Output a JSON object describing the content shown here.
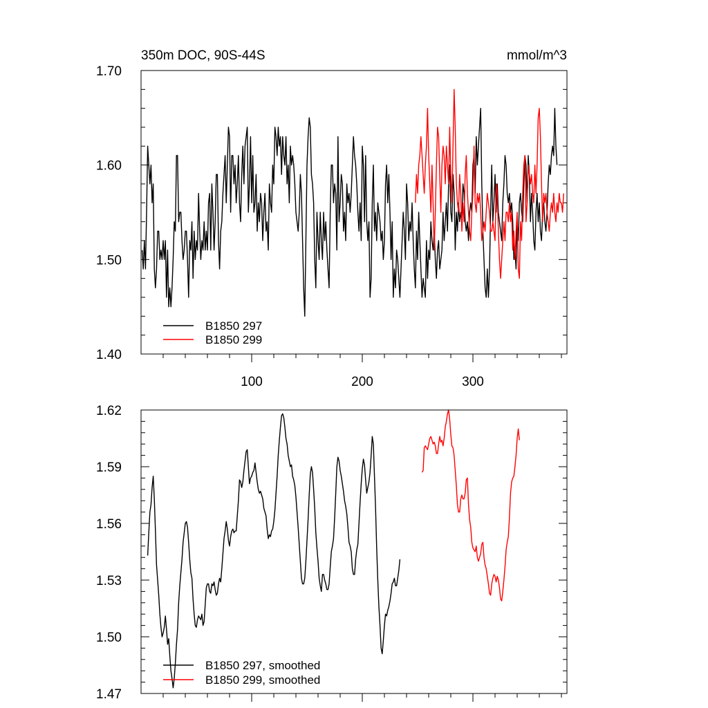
{
  "chart_data": [
    {
      "type": "line",
      "title_left": "350m DOC, 90S-44S",
      "title_right": "mmol/m^3",
      "xlabel": "",
      "ylabel": "",
      "xlim": [
        0,
        385
      ],
      "ylim": [
        1.4,
        1.7
      ],
      "xticks": [
        100,
        200,
        300
      ],
      "xtick_labels": [
        "100",
        "200",
        "300"
      ],
      "yticks": [
        1.4,
        1.5,
        1.6,
        1.7
      ],
      "ytick_labels": [
        "1.40",
        "1.50",
        "1.60",
        "1.70"
      ],
      "legend_position": "bottom-left",
      "series": [
        {
          "name": "B1850 297",
          "color": "#000000",
          "x0": 1,
          "values": [
            1.51,
            1.49,
            1.52,
            1.49,
            1.55,
            1.62,
            1.6,
            1.58,
            1.6,
            1.56,
            1.58,
            1.49,
            1.47,
            1.49,
            1.53,
            1.53,
            1.5,
            1.51,
            1.5,
            1.52,
            1.5,
            1.52,
            1.46,
            1.51,
            1.45,
            1.47,
            1.45,
            1.47,
            1.5,
            1.54,
            1.53,
            1.61,
            1.61,
            1.54,
            1.55,
            1.55,
            1.52,
            1.5,
            1.51,
            1.53,
            1.53,
            1.5,
            1.46,
            1.52,
            1.51,
            1.54,
            1.48,
            1.53,
            1.5,
            1.52,
            1.51,
            1.57,
            1.53,
            1.5,
            1.52,
            1.51,
            1.54,
            1.51,
            1.53,
            1.51,
            1.56,
            1.57,
            1.51,
            1.58,
            1.55,
            1.51,
            1.54,
            1.59,
            1.59,
            1.52,
            1.49,
            1.53,
            1.54,
            1.57,
            1.59,
            1.61,
            1.56,
            1.6,
            1.64,
            1.63,
            1.55,
            1.61,
            1.61,
            1.58,
            1.6,
            1.56,
            1.58,
            1.61,
            1.56,
            1.54,
            1.59,
            1.62,
            1.58,
            1.62,
            1.63,
            1.64,
            1.55,
            1.58,
            1.63,
            1.56,
            1.61,
            1.55,
            1.56,
            1.59,
            1.53,
            1.56,
            1.54,
            1.57,
            1.56,
            1.52,
            1.55,
            1.57,
            1.53,
            1.54,
            1.51,
            1.58,
            1.56,
            1.55,
            1.6,
            1.58,
            1.64,
            1.63,
            1.61,
            1.64,
            1.62,
            1.63,
            1.59,
            1.63,
            1.61,
            1.6,
            1.63,
            1.58,
            1.6,
            1.56,
            1.62,
            1.6,
            1.61,
            1.6,
            1.58,
            1.55,
            1.54,
            1.53,
            1.55,
            1.59,
            1.57,
            1.52,
            1.47,
            1.44,
            1.52,
            1.6,
            1.63,
            1.65,
            1.64,
            1.59,
            1.58,
            1.56,
            1.5,
            1.47,
            1.55,
            1.52,
            1.5,
            1.55,
            1.52,
            1.5,
            1.55,
            1.52,
            1.54,
            1.51,
            1.49,
            1.47,
            1.55,
            1.6,
            1.6,
            1.56,
            1.58,
            1.57,
            1.51,
            1.63,
            1.54,
            1.56,
            1.59,
            1.58,
            1.53,
            1.55,
            1.52,
            1.58,
            1.56,
            1.57,
            1.55,
            1.57,
            1.6,
            1.63,
            1.61,
            1.6,
            1.58,
            1.55,
            1.53,
            1.56,
            1.52,
            1.62,
            1.6,
            1.54,
            1.61,
            1.54,
            1.52,
            1.54,
            1.46,
            1.48,
            1.56,
            1.6,
            1.53,
            1.55,
            1.52,
            1.56,
            1.55,
            1.54,
            1.52,
            1.53,
            1.5,
            1.52,
            1.58,
            1.6,
            1.56,
            1.59,
            1.55,
            1.5,
            1.54,
            1.46,
            1.49,
            1.47,
            1.51,
            1.5,
            1.48,
            1.46,
            1.49,
            1.52,
            1.55,
            1.53,
            1.5,
            1.58,
            1.56,
            1.52,
            1.54,
            1.53,
            1.56,
            1.52,
            1.49,
            1.47,
            1.53,
            1.5,
            1.55,
            1.52,
            1.49,
            1.46,
            1.48,
            1.47,
            1.46,
            1.52,
            1.48,
            1.51,
            1.5,
            1.54,
            1.52,
            1.51,
            1.53,
            1.5,
            1.48,
            1.51,
            1.52,
            1.49,
            1.5,
            1.51,
            1.55,
            1.52,
            1.54,
            1.56,
            1.53,
            1.58,
            1.6,
            1.55,
            1.54,
            1.59,
            1.57,
            1.51,
            1.55,
            1.53,
            1.56,
            1.54,
            1.55,
            1.54,
            1.58,
            1.57,
            1.54,
            1.53,
            1.54,
            1.52,
            1.55,
            1.56,
            1.55,
            1.6,
            1.61,
            1.57,
            1.63,
            1.6,
            1.62,
            1.64,
            1.66,
            1.58,
            1.53,
            1.5,
            1.47,
            1.46,
            1.49,
            1.46,
            1.49,
            1.55,
            1.6,
            1.54,
            1.56,
            1.59,
            1.55,
            1.58,
            1.55,
            1.54,
            1.53,
            1.52,
            1.56,
            1.58,
            1.61,
            1.6,
            1.57,
            1.56,
            1.57,
            1.55,
            1.56,
            1.54,
            1.5,
            1.51,
            1.49,
            1.54,
            1.52,
            1.56,
            1.57,
            1.55,
            1.54,
            1.58,
            1.61,
            1.6,
            1.56,
            1.61,
            1.59,
            1.54,
            1.57,
            1.55,
            1.52,
            1.51,
            1.55,
            1.57,
            1.54,
            1.56,
            1.53,
            1.52,
            1.55,
            1.56,
            1.54,
            1.53,
            1.55,
            1.58,
            1.6,
            1.59,
            1.61,
            1.62,
            1.61,
            1.66,
            1.62,
            1.6
          ]
        },
        {
          "name": "B1850 299",
          "color": "#ff0000",
          "x0": 248,
          "values": [
            1.56,
            1.59,
            1.57,
            1.6,
            1.61,
            1.63,
            1.61,
            1.59,
            1.57,
            1.6,
            1.62,
            1.66,
            1.61,
            1.58,
            1.55,
            1.6,
            1.56,
            1.51,
            1.55,
            1.6,
            1.64,
            1.63,
            1.59,
            1.55,
            1.6,
            1.62,
            1.61,
            1.58,
            1.62,
            1.6,
            1.58,
            1.64,
            1.59,
            1.56,
            1.62,
            1.68,
            1.64,
            1.58,
            1.56,
            1.55,
            1.59,
            1.57,
            1.53,
            1.56,
            1.54,
            1.59,
            1.61,
            1.57,
            1.55,
            1.53,
            1.52,
            1.55,
            1.57,
            1.62,
            1.56,
            1.55,
            1.57,
            1.56,
            1.57,
            1.55,
            1.52,
            1.53,
            1.54,
            1.53,
            1.55,
            1.57,
            1.56,
            1.55,
            1.53,
            1.53,
            1.54,
            1.53,
            1.52,
            1.58,
            1.57,
            1.53,
            1.5,
            1.48,
            1.5,
            1.52,
            1.54,
            1.52,
            1.55,
            1.55,
            1.54,
            1.56,
            1.54,
            1.55,
            1.51,
            1.53,
            1.5,
            1.53,
            1.55,
            1.49,
            1.48,
            1.54,
            1.52,
            1.57,
            1.6,
            1.61,
            1.54,
            1.56,
            1.6,
            1.59,
            1.58,
            1.59,
            1.57,
            1.56,
            1.6,
            1.57,
            1.6,
            1.65,
            1.66,
            1.63,
            1.58,
            1.54,
            1.57,
            1.56,
            1.57,
            1.55,
            1.54,
            1.53,
            1.55,
            1.56,
            1.55,
            1.57,
            1.55,
            1.54,
            1.56,
            1.55,
            1.57,
            1.56,
            1.56,
            1.55,
            1.57
          ]
        }
      ]
    },
    {
      "type": "line",
      "title_left": "",
      "title_right": "",
      "xlabel": "",
      "ylabel": "",
      "xlim": [
        0,
        385
      ],
      "ylim": [
        1.47,
        1.62
      ],
      "xticks": [
        100,
        200,
        300
      ],
      "xtick_labels": [],
      "yticks": [
        1.47,
        1.5,
        1.53,
        1.56,
        1.59,
        1.62
      ],
      "ytick_labels": [
        "1.47",
        "1.50",
        "1.53",
        "1.56",
        "1.59",
        "1.62"
      ],
      "legend_position": "bottom-left",
      "series": [
        {
          "name": "B1850 297, smoothed",
          "color": "#000000",
          "x0": 6,
          "values": [
            1.543,
            1.555,
            1.566,
            1.57,
            1.579,
            1.585,
            1.573,
            1.556,
            1.538,
            1.53,
            1.522,
            1.512,
            1.505,
            1.5,
            1.502,
            1.505,
            1.511,
            1.504,
            1.496,
            1.499,
            1.49,
            1.482,
            1.478,
            1.473,
            1.478,
            1.486,
            1.496,
            1.504,
            1.518,
            1.527,
            1.534,
            1.541,
            1.55,
            1.555,
            1.56,
            1.561,
            1.558,
            1.55,
            1.541,
            1.534,
            1.531,
            1.52,
            1.512,
            1.506,
            1.505,
            1.509,
            1.511,
            1.51,
            1.509,
            1.512,
            1.506,
            1.508,
            1.517,
            1.526,
            1.528,
            1.528,
            1.524,
            1.523,
            1.528,
            1.527,
            1.529,
            1.525,
            1.522,
            1.523,
            1.528,
            1.531,
            1.529,
            1.536,
            1.544,
            1.552,
            1.556,
            1.561,
            1.557,
            1.551,
            1.548,
            1.553,
            1.556,
            1.557,
            1.555,
            1.556,
            1.556,
            1.564,
            1.572,
            1.583,
            1.582,
            1.579,
            1.582,
            1.588,
            1.593,
            1.598,
            1.599,
            1.59,
            1.581,
            1.584,
            1.585,
            1.587,
            1.588,
            1.592,
            1.587,
            1.582,
            1.578,
            1.576,
            1.577,
            1.575,
            1.573,
            1.568,
            1.566,
            1.564,
            1.557,
            1.552,
            1.554,
            1.553,
            1.556,
            1.557,
            1.561,
            1.567,
            1.576,
            1.585,
            1.596,
            1.604,
            1.611,
            1.617,
            1.618,
            1.616,
            1.611,
            1.605,
            1.602,
            1.596,
            1.593,
            1.59,
            1.591,
            1.585,
            1.583,
            1.58,
            1.574,
            1.566,
            1.558,
            1.549,
            1.54,
            1.531,
            1.528,
            1.528,
            1.531,
            1.54,
            1.551,
            1.562,
            1.575,
            1.586,
            1.59,
            1.587,
            1.578,
            1.568,
            1.555,
            1.547,
            1.54,
            1.531,
            1.527,
            1.524,
            1.533,
            1.533,
            1.53,
            1.528,
            1.525,
            1.525,
            1.528,
            1.537,
            1.545,
            1.548,
            1.552,
            1.563,
            1.576,
            1.59,
            1.595,
            1.593,
            1.588,
            1.585,
            1.581,
            1.577,
            1.572,
            1.569,
            1.565,
            1.558,
            1.55,
            1.548,
            1.545,
            1.536,
            1.533,
            1.533,
            1.541,
            1.546,
            1.549,
            1.56,
            1.571,
            1.581,
            1.589,
            1.594,
            1.591,
            1.583,
            1.576,
            1.579,
            1.582,
            1.587,
            1.596,
            1.606,
            1.602,
            1.585,
            1.568,
            1.547,
            1.53,
            1.516,
            1.506,
            1.494,
            1.491,
            1.498,
            1.506,
            1.512,
            1.511,
            1.514,
            1.516,
            1.519,
            1.523,
            1.528,
            1.529,
            1.531,
            1.527,
            1.527,
            1.531,
            1.535,
            1.541
          ]
        },
        {
          "name": "B1850 299, smoothed",
          "color": "#ff0000",
          "x0": 254,
          "values": [
            1.587,
            1.588,
            1.6,
            1.601,
            1.6,
            1.599,
            1.602,
            1.605,
            1.606,
            1.604,
            1.602,
            1.603,
            1.601,
            1.597,
            1.597,
            1.602,
            1.606,
            1.603,
            1.604,
            1.601,
            1.605,
            1.611,
            1.614,
            1.618,
            1.62,
            1.615,
            1.607,
            1.601,
            1.6,
            1.596,
            1.588,
            1.58,
            1.57,
            1.566,
            1.566,
            1.573,
            1.575,
            1.573,
            1.573,
            1.576,
            1.583,
            1.584,
            1.57,
            1.562,
            1.558,
            1.55,
            1.547,
            1.546,
            1.545,
            1.548,
            1.542,
            1.54,
            1.542,
            1.544,
            1.549,
            1.55,
            1.542,
            1.538,
            1.536,
            1.532,
            1.528,
            1.523,
            1.522,
            1.528,
            1.531,
            1.533,
            1.532,
            1.529,
            1.532,
            1.53,
            1.526,
            1.52,
            1.519,
            1.524,
            1.53,
            1.537,
            1.546,
            1.55,
            1.553,
            1.563,
            1.576,
            1.582,
            1.584,
            1.585,
            1.59,
            1.596,
            1.605,
            1.61,
            1.604
          ]
        }
      ]
    }
  ]
}
